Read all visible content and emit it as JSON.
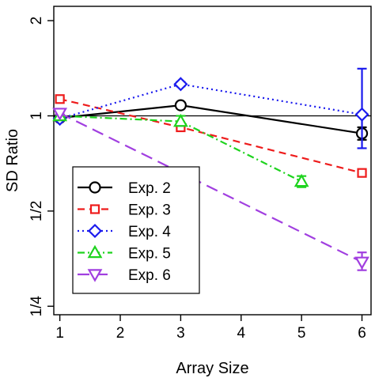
{
  "chart_data": {
    "type": "line",
    "title": "",
    "xlabel": "Array Size",
    "ylabel": "SD Ratio",
    "xlim": [
      0.9,
      6.15
    ],
    "ylim": [
      0.235,
      2.22
    ],
    "y_scale": "log2",
    "x_ticks": [
      1,
      2,
      3,
      4,
      5,
      6
    ],
    "x_tick_labels": [
      "1",
      "2",
      "3",
      "4",
      "5",
      "6"
    ],
    "y_ticks": [
      0.25,
      0.5,
      1,
      2
    ],
    "y_tick_labels": [
      "1/4",
      "1/2",
      "1",
      "2"
    ],
    "reference_line_y": 1,
    "grid": false,
    "legend_position": "bottom-left",
    "series": [
      {
        "name": "Exp. 2",
        "color": "#000000",
        "dash": "solid",
        "marker": "circle",
        "x": [
          1,
          3,
          6
        ],
        "y": [
          0.985,
          1.08,
          0.88
        ],
        "errors": [
          [
            0.985,
            0.985
          ],
          [
            1.06,
            1.1
          ],
          [
            0.84,
            0.92
          ]
        ]
      },
      {
        "name": "Exp. 3",
        "color": "#ee1c1c",
        "dash": "dashed",
        "marker": "square",
        "x": [
          1,
          3,
          6
        ],
        "y": [
          1.13,
          0.92,
          0.66
        ],
        "errors": [
          [
            1.12,
            1.14
          ],
          [
            0.91,
            0.93
          ],
          [
            0.65,
            0.67
          ]
        ]
      },
      {
        "name": "Exp. 4",
        "color": "#1a1aee",
        "dash": "dotted",
        "marker": "diamond",
        "x": [
          1,
          3,
          6
        ],
        "y": [
          0.98,
          1.26,
          1.01
        ],
        "errors": [
          [
            0.975,
            0.985
          ],
          [
            1.24,
            1.28
          ],
          [
            0.79,
            1.41
          ]
        ]
      },
      {
        "name": "Exp. 5",
        "color": "#1ed31e",
        "dash": "dashdot",
        "marker": "triangle",
        "x": [
          1,
          3,
          5
        ],
        "y": [
          1.0,
          0.96,
          0.62
        ],
        "errors": [
          [
            0.99,
            1.01
          ],
          [
            0.93,
            1.0
          ],
          [
            0.595,
            0.645
          ]
        ]
      },
      {
        "name": "Exp. 6",
        "color": "#a13fe0",
        "dash": "longdash",
        "marker": "triangle-down",
        "x": [
          1,
          6
        ],
        "y": [
          1.02,
          0.345
        ],
        "errors": [
          [
            1.01,
            1.03
          ],
          [
            0.325,
            0.37
          ]
        ]
      }
    ]
  }
}
